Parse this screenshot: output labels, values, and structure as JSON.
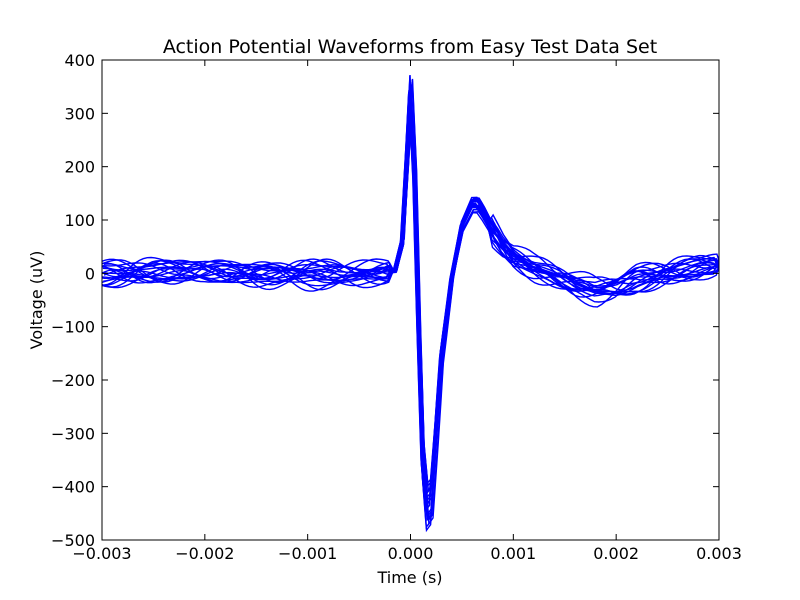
{
  "chart_data": {
    "type": "line",
    "title": "Action Potential Waveforms from Easy Test Data Set",
    "xlabel": "Time (s)",
    "ylabel": "Voltage (uV)",
    "xlim": [
      -0.003,
      0.003
    ],
    "ylim": [
      -500,
      400
    ],
    "xticks": [
      -0.003,
      -0.002,
      -0.001,
      0.0,
      0.001,
      0.002,
      0.003
    ],
    "xtick_labels": [
      "−0.003",
      "−0.002",
      "−0.001",
      "0.000",
      "0.001",
      "0.002",
      "0.003"
    ],
    "yticks": [
      400,
      300,
      200,
      100,
      0,
      -100,
      -200,
      -300,
      -400,
      -500
    ],
    "ytick_labels": [
      "400",
      "300",
      "200",
      "100",
      "0",
      "−100",
      "−200",
      "−300",
      "−400",
      "−500"
    ],
    "grid": false,
    "legend": "none",
    "line_color": "#0000ff",
    "series_count": 20,
    "template": {
      "x": [
        -0.003,
        -0.0025,
        -0.002,
        -0.0015,
        -0.001,
        -0.0005,
        -0.0003,
        -0.00015,
        -8e-05,
        -3e-05,
        0.0,
        4e-05,
        8e-05,
        0.00012,
        0.00016,
        0.0002,
        0.00025,
        0.0003,
        0.0004,
        0.0005,
        0.0006,
        0.00065,
        0.0007,
        0.0008,
        0.0009,
        0.001,
        0.0012,
        0.0014,
        0.0016,
        0.0018,
        0.002,
        0.0022,
        0.0025,
        0.0028,
        0.003
      ],
      "y": [
        0,
        2,
        3,
        -2,
        1,
        0,
        2,
        5,
        60,
        230,
        340,
        180,
        -100,
        -350,
        -440,
        -430,
        -300,
        -160,
        -10,
        90,
        130,
        130,
        115,
        80,
        50,
        30,
        10,
        -5,
        -20,
        -30,
        -25,
        -10,
        0,
        10,
        15
      ]
    }
  }
}
